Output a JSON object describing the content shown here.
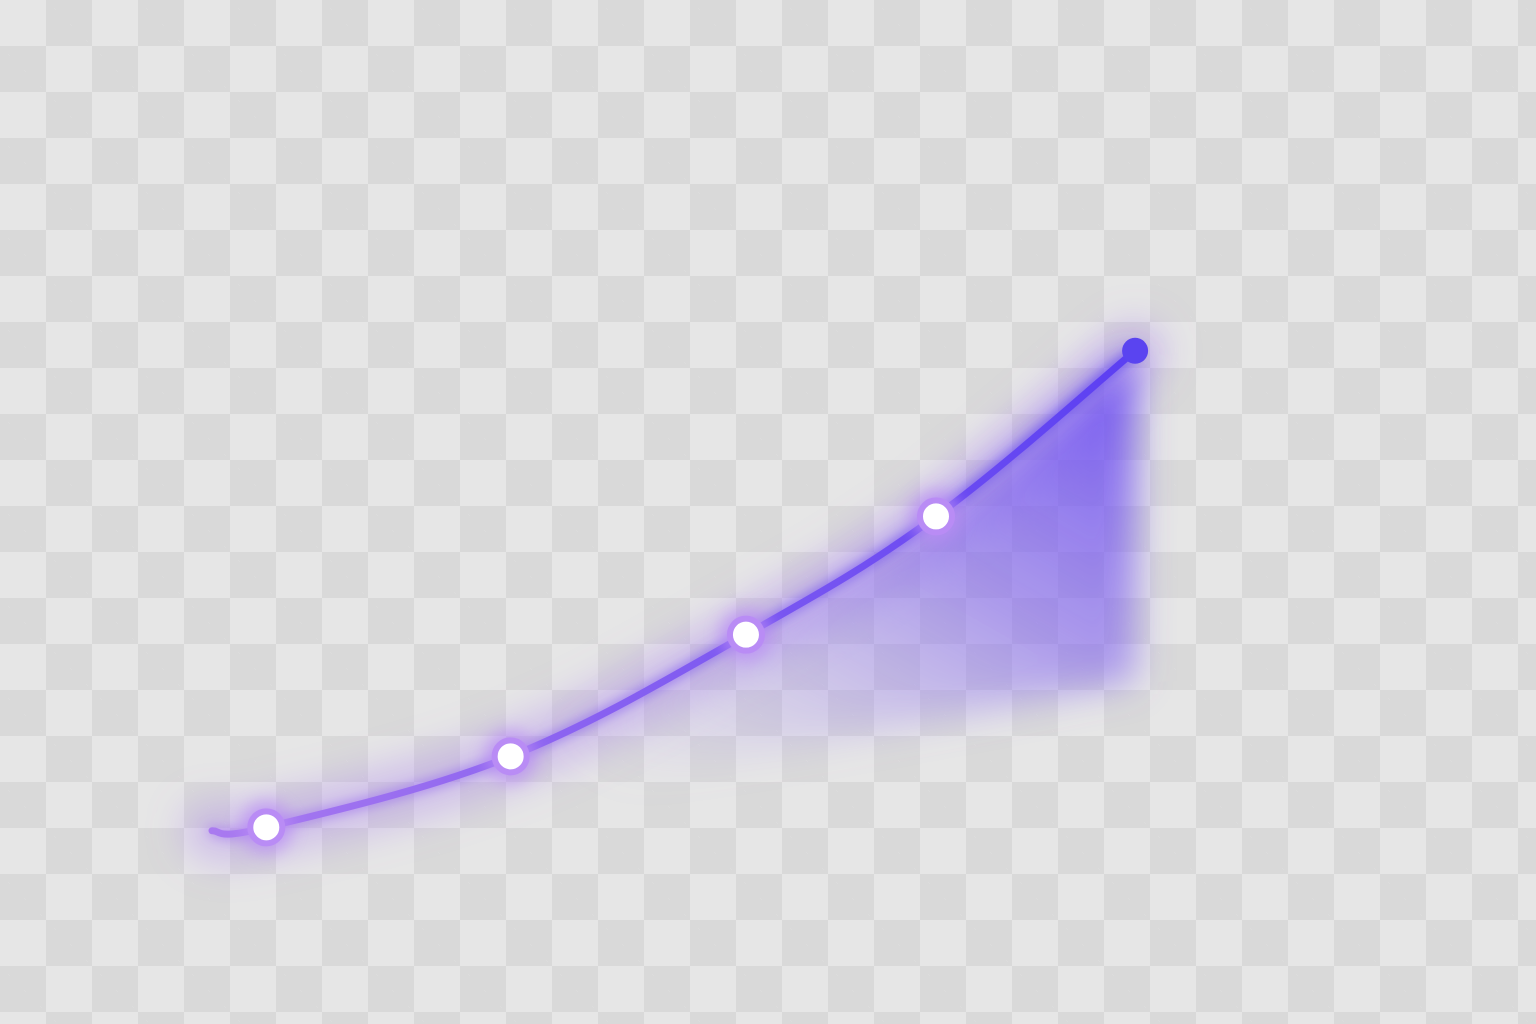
{
  "background": "transparency-checkerboard",
  "colors": {
    "checker_light": "#e6e6e6",
    "checker_dark": "#d9d9d9",
    "line_start": "#a97af0",
    "line_end": "#5b3ff2",
    "area_fill": "#6a4cf2",
    "marker_fill": "#ffffff",
    "marker_stroke": "#b98cf5",
    "end_dot": "#5a44f0"
  },
  "chart_data": {
    "type": "line",
    "title": "",
    "xlabel": "",
    "ylabel": "",
    "grid": false,
    "legend": "none",
    "axes_visible": false,
    "curve": "smooth",
    "area_fill_under_last_segment": true,
    "xlim": [
      0,
      12
    ],
    "ylim": [
      0,
      10
    ],
    "series": [
      {
        "points": [
          {
            "x": 0.0,
            "y": 0.3,
            "marker": false
          },
          {
            "x": 0.6,
            "y": 0.35,
            "marker": true
          },
          {
            "x": 3.3,
            "y": 1.4,
            "marker": true
          },
          {
            "x": 5.9,
            "y": 3.2,
            "marker": true
          },
          {
            "x": 8.0,
            "y": 4.95,
            "marker": true
          },
          {
            "x": 10.2,
            "y": 7.4,
            "marker": "end-dot"
          }
        ]
      }
    ]
  }
}
